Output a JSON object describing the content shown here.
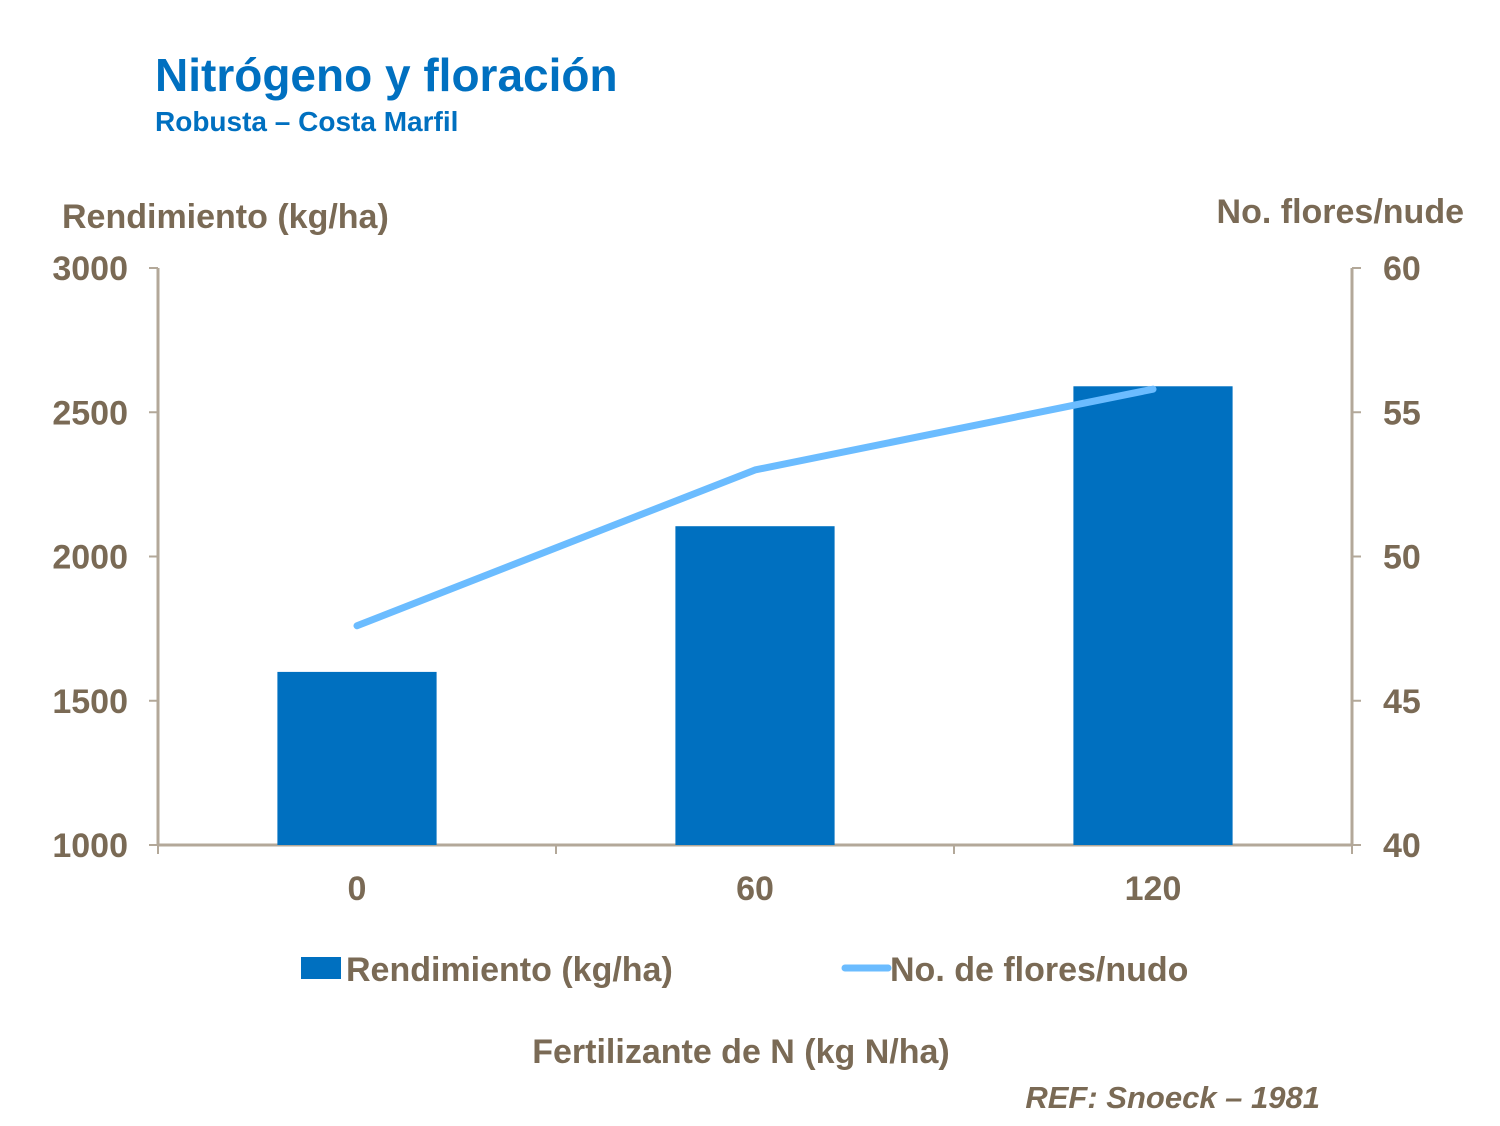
{
  "colors": {
    "title": "#0070C0",
    "text": "#7A6A55",
    "axis": "#B3A899",
    "bar": "#0070C0",
    "line": "#6BBCFF"
  },
  "chart_data": {
    "type": "bar+line",
    "title": "Nitrógeno y floración",
    "subtitle": "Robusta – Costa Marfil",
    "xlabel": "Fertilizante de N (kg N/ha)",
    "ylabel": "Rendimiento (kg/ha)",
    "y2label": "No. flores/nude",
    "categories": [
      "0",
      "60",
      "120"
    ],
    "ylim": [
      1000,
      3000
    ],
    "yticks": [
      "1000",
      "1500",
      "2000",
      "2500",
      "3000"
    ],
    "y2lim": [
      40,
      60
    ],
    "y2ticks": [
      "40",
      "45",
      "50",
      "55",
      "60"
    ],
    "series": [
      {
        "name": "Rendimiento (kg/ha)",
        "type": "bar",
        "axis": "left",
        "values": [
          1600,
          2105,
          2590
        ]
      },
      {
        "name": "No. de flores/nudo",
        "type": "line",
        "axis": "right",
        "values": [
          47.6,
          53.0,
          55.8
        ]
      }
    ],
    "legend_position": "bottom",
    "grid": false
  },
  "reference": "REF: Snoeck – 1981"
}
